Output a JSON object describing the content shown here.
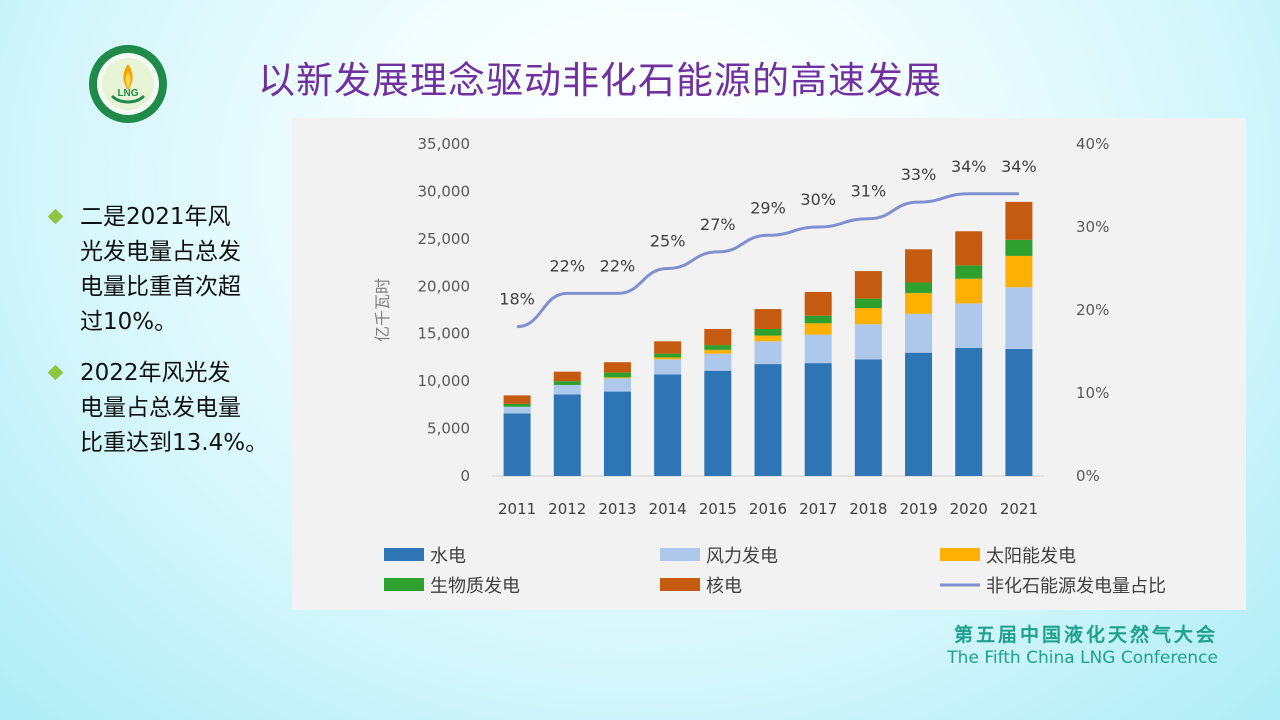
{
  "slide": {
    "title": "以新发展理念驱动非化石能源的高速发展",
    "logo_text": "LNG",
    "bullets": [
      [
        "二是2021年风",
        "光发电量占总发",
        "电量比重首次超",
        "过10%。"
      ],
      [
        "2022年风光发",
        "电量占总发电量",
        "比重达到13.4%。"
      ]
    ],
    "footer_cn": "第五届中国液化天然气大会",
    "footer_en": "The Fifth China LNG Conference"
  },
  "colors": {
    "title": "#7030a0",
    "bullet": "#8dc63f",
    "footer": "#1fa18e"
  },
  "chart_data": {
    "type": "bar",
    "stacked": true,
    "categories": [
      "2011",
      "2012",
      "2013",
      "2014",
      "2015",
      "2016",
      "2017",
      "2018",
      "2019",
      "2020",
      "2021"
    ],
    "ylabel": "亿千瓦时",
    "ylim": [
      0,
      35000
    ],
    "yticks": [
      "0",
      "5,000",
      "10,000",
      "15,000",
      "20,000",
      "25,000",
      "30,000",
      "35,000"
    ],
    "y2lim": [
      0,
      40
    ],
    "y2ticks": [
      "0%",
      "10%",
      "20%",
      "30%",
      "40%"
    ],
    "series": [
      {
        "name": "水电",
        "color": "#2e75b6",
        "values": [
          6600,
          8600,
          8900,
          10700,
          11100,
          11800,
          11900,
          12300,
          13000,
          13500,
          13400
        ]
      },
      {
        "name": "风力发电",
        "color": "#adc8ea",
        "values": [
          700,
          1000,
          1400,
          1600,
          1800,
          2400,
          3000,
          3700,
          4100,
          4700,
          6500
        ]
      },
      {
        "name": "太阳能发电",
        "color": "#ffb000",
        "values": [
          0,
          0,
          100,
          200,
          400,
          600,
          1200,
          1700,
          2200,
          2600,
          3300
        ]
      },
      {
        "name": "生物质发电",
        "color": "#2ea02e",
        "values": [
          300,
          400,
          500,
          400,
          500,
          700,
          800,
          1000,
          1100,
          1400,
          1700
        ]
      },
      {
        "name": "核电",
        "color": "#c55a11",
        "values": [
          900,
          1000,
          1100,
          1300,
          1700,
          2100,
          2500,
          2900,
          3500,
          3600,
          4000
        ]
      }
    ],
    "line": {
      "name": "非化石能源发电量占比",
      "color": "#7f8fcf",
      "axis": "right",
      "values": [
        18,
        22,
        22,
        25,
        27,
        29,
        30,
        31,
        33,
        34,
        34
      ],
      "labels": [
        "18%",
        "22%",
        "22%",
        "25%",
        "27%",
        "29%",
        "30%",
        "31%",
        "33%",
        "34%",
        "34%"
      ]
    },
    "legend_position": "bottom",
    "grid": false
  }
}
